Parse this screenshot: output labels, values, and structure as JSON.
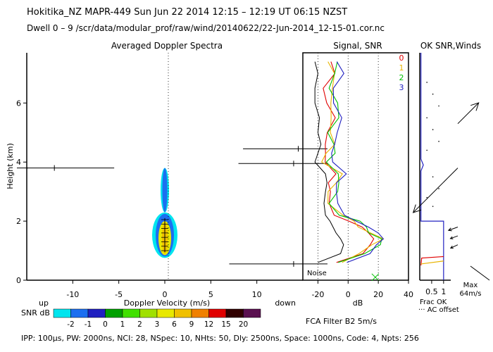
{
  "header": {
    "line1": "Hokitika_NZ  MAPR-449  Sun Jun 22 2014 12:15 – 12:19 UT 06:15 NZST",
    "line2": "Dwell  0 – 9   /scr/data/modular_prof/raw/wind/20140622/22-Jun-2014_12-15-01.cor.nc"
  },
  "footer": {
    "params": "IPP: 100μs,  PW: 2000ns,  NCI:  28,  NSpec: 10,  NHts: 50,  Dly: 2500ns,  Space: 1000ns,  Code: 4,  Npts: 256",
    "filter": "FCA Filter B2   5m/s"
  },
  "colors": {
    "axes": "#000000",
    "snr_scale": [
      "#00e5ee",
      "#1c6ff0",
      "#2020c0",
      "#00a000",
      "#40e000",
      "#a0e000",
      "#e8e800",
      "#f0c000",
      "#f08000",
      "#e00000",
      "#300000",
      "#5a1050"
    ]
  },
  "snr_scale": {
    "label": "SNR dB",
    "ticks": [
      "-2",
      "-1",
      "0",
      "1",
      "2",
      "3",
      "6",
      "9",
      "12",
      "15",
      "20"
    ]
  },
  "chart_data": [
    {
      "type": "heatmap",
      "title": "Averaged Doppler Spectra",
      "xlabel": "Doppler Velocity (m/s)",
      "ylabel": "Height (km)",
      "x_ticks": [
        -10,
        -5,
        0,
        5,
        10
      ],
      "y_ticks": [
        0,
        2,
        4,
        6
      ],
      "xlim": [
        -15,
        15
      ],
      "ylim": [
        0,
        7.7
      ],
      "dir_left": "up",
      "dir_right": "down",
      "echo_heights_km": [
        0.85,
        3.8
      ],
      "lines": [
        {
          "y": 3.8,
          "x0": -15,
          "x1": -5.5,
          "mark": -12
        },
        {
          "y": 4.45,
          "x0": 8.5,
          "x1": 15,
          "mark": 14.5
        },
        {
          "y": 3.95,
          "x0": 8,
          "x1": 15,
          "mark": 14
        },
        {
          "y": 0.55,
          "x0": 7,
          "x1": 15,
          "mark": 14
        }
      ]
    },
    {
      "type": "line",
      "title": "Signal, SNR",
      "xlabel": "dB",
      "x_ticks": [
        -20,
        0,
        20,
        40
      ],
      "xlim": [
        -30,
        40
      ],
      "ylim": [
        0,
        7.7
      ],
      "noise_label": "Noise",
      "series": [
        {
          "name": "0",
          "color": "#e00000"
        },
        {
          "name": "1",
          "color": "#e8b400"
        },
        {
          "name": "2",
          "color": "#00c000"
        },
        {
          "name": "3",
          "color": "#2020c0"
        }
      ],
      "heights": [
        0.6,
        0.9,
        1.2,
        1.4,
        1.6,
        1.8,
        2.0,
        2.2,
        2.6,
        3.0,
        3.3,
        3.6,
        4.0,
        4.3,
        4.6,
        5.0,
        5.5,
        6.0,
        6.5,
        7.0,
        7.4
      ],
      "snr_values": [
        -5,
        10,
        18,
        22,
        15,
        10,
        5,
        -5,
        -12,
        -10,
        -8,
        -5,
        -15,
        -12,
        -10,
        -12,
        -8,
        -10,
        -12,
        -8,
        -10
      ],
      "signal_values": [
        -20,
        -5,
        -3,
        -5,
        -8,
        -10,
        -12,
        -15,
        -16,
        -15,
        -14,
        -15,
        -22,
        -20,
        -18,
        -20,
        -19,
        -22,
        -22,
        -20,
        -22
      ]
    },
    {
      "type": "line",
      "title": "OK SNR,Winds",
      "xlabel": "Frac OK",
      "x_ticks": [
        0.5,
        1
      ],
      "xlim": [
        0,
        1.3
      ],
      "ylim": [
        0,
        7.7
      ],
      "ac_offset_label": "··· AC offset",
      "max_label": "Max",
      "max_value_label": "64m/s",
      "frac_ok": [
        {
          "y": 2.0,
          "x": 1.0
        },
        {
          "y": 0.8,
          "x": 1.0
        },
        {
          "y": 0.6,
          "x": 0.1
        }
      ],
      "winds": [
        {
          "y": 5.3,
          "dir": 45,
          "speed": 30
        },
        {
          "y": 3.8,
          "dir": 225,
          "speed": 64
        },
        {
          "y": 1.8,
          "dir": 200,
          "speed": 10
        },
        {
          "y": 1.5,
          "dir": 200,
          "speed": 8
        },
        {
          "y": 1.2,
          "dir": 205,
          "speed": 8
        }
      ]
    }
  ]
}
